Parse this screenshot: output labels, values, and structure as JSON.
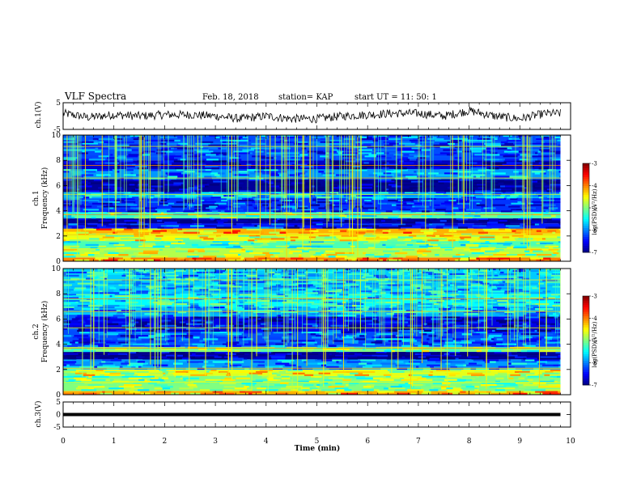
{
  "header": {
    "title": "VLF Spectra",
    "date": "Feb. 18, 2018",
    "station": "station= KAP",
    "start": "start  UT =   11: 50: 1"
  },
  "chart_data": [
    {
      "type": "line",
      "name": "ch1-waveform",
      "ylabel": "ch.1(V)",
      "ylim": [
        -5,
        5
      ],
      "yticks": [
        "5",
        "-5"
      ],
      "xlim": [
        0,
        10
      ],
      "x_minutes": [
        0,
        0.5,
        1,
        1.5,
        2,
        2.5,
        3,
        3.5,
        4,
        4.5,
        5,
        5.5,
        6,
        6.5,
        7,
        7.5,
        8,
        8.5,
        9,
        9.5,
        9.8
      ],
      "approx_level_volts": [
        1,
        -0.5,
        0.5,
        0,
        0.5,
        0.5,
        0,
        -1,
        0,
        -1,
        -1,
        0,
        0.5,
        1,
        1,
        0,
        2,
        0,
        -1,
        1,
        1
      ]
    },
    {
      "type": "heatmap",
      "name": "ch1-spectrogram",
      "ylabel": "ch.1\nFrequency (kHz)",
      "ylabel_line1": "ch.1",
      "ylabel_line2": "Frequency (kHz)",
      "ylim": [
        0,
        10
      ],
      "yticks": [
        "0",
        "2",
        "4",
        "6",
        "8",
        "10"
      ],
      "xlim": [
        0,
        10
      ],
      "data_end_minutes": 9.8,
      "colorbar": {
        "label": "log(PSD)(V²/Hz)",
        "range": [
          -7,
          -3
        ],
        "ticks": [
          "-3",
          "-4",
          "-5",
          "-6",
          "-7"
        ]
      },
      "frequency_bands_kHz": [
        {
          "from": 0.0,
          "to": 0.3,
          "level": -4.0
        },
        {
          "from": 0.3,
          "to": 1.0,
          "level": -4.8
        },
        {
          "from": 1.0,
          "to": 1.6,
          "level": -5.2
        },
        {
          "from": 1.6,
          "to": 2.2,
          "level": -4.6
        },
        {
          "from": 2.2,
          "to": 2.6,
          "level": -4.2
        },
        {
          "from": 2.6,
          "to": 3.0,
          "level": -6.4
        },
        {
          "from": 3.0,
          "to": 3.4,
          "level": -6.9
        },
        {
          "from": 3.4,
          "to": 3.9,
          "level": -5.2
        },
        {
          "from": 3.9,
          "to": 5.0,
          "level": -6.3
        },
        {
          "from": 5.0,
          "to": 5.5,
          "level": -5.8
        },
        {
          "from": 5.5,
          "to": 6.5,
          "level": -6.9
        },
        {
          "from": 6.5,
          "to": 7.3,
          "level": -5.9
        },
        {
          "from": 7.3,
          "to": 8.0,
          "level": -6.7
        },
        {
          "from": 8.0,
          "to": 10.0,
          "level": -6.2
        }
      ]
    },
    {
      "type": "heatmap",
      "name": "ch2-spectrogram",
      "ylabel": "ch.2\nFrequency (kHz)",
      "ylabel_line1": "ch.2",
      "ylabel_line2": "Frequency (kHz)",
      "ylim": [
        0,
        10
      ],
      "yticks": [
        "0",
        "2",
        "4",
        "6",
        "8",
        "10"
      ],
      "xlim": [
        0,
        10
      ],
      "data_end_minutes": 9.8,
      "colorbar": {
        "label": "log(PSD)(V²/Hz)",
        "range": [
          -7,
          -3
        ],
        "ticks": [
          "-3",
          "-4",
          "-5",
          "-6",
          "-7"
        ]
      },
      "frequency_bands_kHz": [
        {
          "from": 0.0,
          "to": 0.3,
          "level": -4.2
        },
        {
          "from": 0.3,
          "to": 1.5,
          "level": -5.0
        },
        {
          "from": 1.5,
          "to": 2.0,
          "level": -4.6
        },
        {
          "from": 2.0,
          "to": 2.8,
          "level": -5.9
        },
        {
          "from": 2.8,
          "to": 3.4,
          "level": -6.9
        },
        {
          "from": 3.4,
          "to": 3.8,
          "level": -5.0
        },
        {
          "from": 3.8,
          "to": 5.0,
          "level": -6.2
        },
        {
          "from": 5.0,
          "to": 6.2,
          "level": -6.6
        },
        {
          "from": 6.2,
          "to": 7.0,
          "level": -5.8
        },
        {
          "from": 7.0,
          "to": 8.0,
          "level": -5.5
        },
        {
          "from": 8.0,
          "to": 10.0,
          "level": -5.7
        }
      ]
    },
    {
      "type": "line",
      "name": "ch3-waveform",
      "ylabel": "ch.3(V)",
      "ylim": [
        -5,
        5
      ],
      "yticks": [
        "5",
        "0",
        "-5"
      ],
      "xlim": [
        0,
        10
      ],
      "x_minutes": [
        0,
        9.8
      ],
      "approx_level_volts": [
        0,
        0
      ]
    }
  ],
  "xaxis": {
    "label": "Time (min)",
    "ticks": [
      "0",
      "1",
      "2",
      "3",
      "4",
      "5",
      "6",
      "7",
      "8",
      "9",
      "10"
    ],
    "range": [
      0,
      10
    ]
  }
}
